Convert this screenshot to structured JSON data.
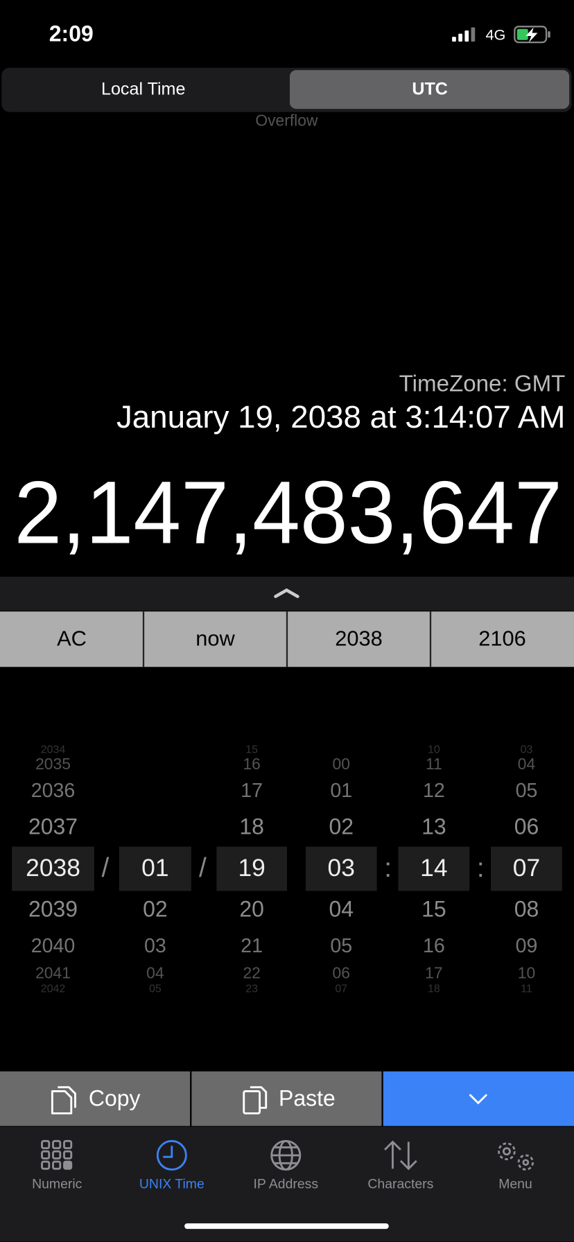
{
  "status_bar": {
    "time": "2:09",
    "network": "4G"
  },
  "segmented_control": {
    "options": [
      "Local Time",
      "UTC"
    ]
  },
  "overflow_label": "Overflow",
  "timezone": "TimeZone: GMT",
  "date_text": "January 19, 2038 at 3:14:07 AM",
  "timestamp": "2,147,483,647",
  "quick_buttons": [
    "AC",
    "now",
    "2038",
    "2106"
  ],
  "picker": {
    "separators": [
      "/",
      "/",
      ":",
      ":"
    ],
    "columns": [
      {
        "above": [
          "2034",
          "2035",
          "2036",
          "2037"
        ],
        "selected": "2038",
        "below": [
          "2039",
          "2040",
          "2041",
          "2042"
        ]
      },
      {
        "above": [],
        "selected": "01",
        "below": [
          "02",
          "03",
          "04",
          "05"
        ]
      },
      {
        "above": [
          "15",
          "16",
          "17",
          "18"
        ],
        "selected": "19",
        "below": [
          "20",
          "21",
          "22",
          "23"
        ]
      },
      {
        "above": [
          "00",
          "01",
          "02"
        ],
        "selected": "03",
        "below": [
          "04",
          "05",
          "06",
          "07"
        ]
      },
      {
        "above": [
          "10",
          "11",
          "12",
          "13"
        ],
        "selected": "14",
        "below": [
          "15",
          "16",
          "17",
          "18"
        ]
      },
      {
        "above": [
          "03",
          "04",
          "05",
          "06"
        ],
        "selected": "07",
        "below": [
          "08",
          "09",
          "10",
          "11"
        ]
      }
    ]
  },
  "actions": {
    "copy": "Copy",
    "paste": "Paste"
  },
  "tabs": [
    "Numeric",
    "UNIX Time",
    "IP Address",
    "Characters",
    "Menu"
  ]
}
